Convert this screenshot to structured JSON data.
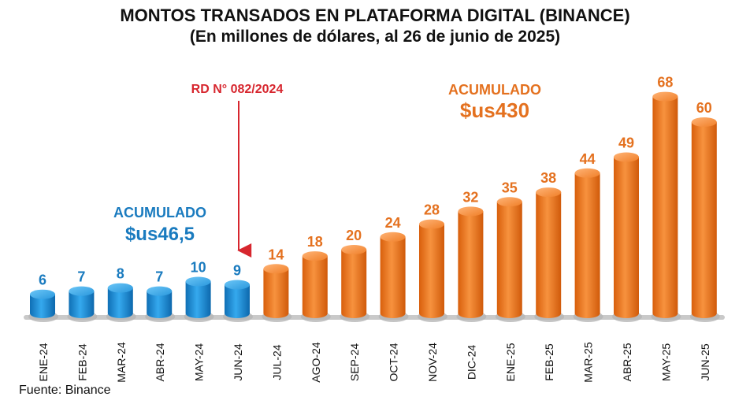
{
  "chart_data": {
    "type": "bar",
    "title": "MONTOS TRANSADOS EN PLATAFORMA DIGITAL (BINANCE)",
    "subtitle": "(En millones de dólares, al 26 de junio de 2025)",
    "categories": [
      "ENE-24",
      "FEB-24",
      "MAR-24",
      "ABR-24",
      "MAY-24",
      "JUN-24",
      "JUL-24",
      "AGO-24",
      "SEP-24",
      "OCT-24",
      "NOV-24",
      "DIC-24",
      "ENE-25",
      "FEB-25",
      "MAR-25",
      "ABR-25",
      "MAY-25",
      "JUN-25"
    ],
    "values": [
      6,
      7,
      8,
      7,
      10,
      9,
      14,
      18,
      20,
      24,
      28,
      32,
      35,
      38,
      44,
      49,
      68,
      60
    ],
    "value_labels": [
      "6",
      "7",
      "8",
      "7",
      "10",
      "9",
      "14",
      "18",
      "20",
      "24",
      "28",
      "32",
      "35",
      "38",
      "44",
      "49",
      "68",
      "60"
    ],
    "groups": [
      {
        "color": "#1e8fd8",
        "label_color": "#1a7bbf",
        "start": 0,
        "end": 5,
        "label": "ACUMULADO",
        "total": "$us46,5"
      },
      {
        "color": "#f07a1e",
        "label_color": "#e4711f",
        "start": 6,
        "end": 17,
        "label": "ACUMULADO",
        "total": "$us430"
      }
    ],
    "annotation": {
      "text": "RD N° 082/2024",
      "color": "#d7262e",
      "between": [
        "JUN-24",
        "JUL-24"
      ]
    },
    "ylim": [
      0,
      70
    ],
    "grid": false,
    "legend": "none",
    "xlabel": "",
    "ylabel": ""
  },
  "source": "Fuente: Binance"
}
